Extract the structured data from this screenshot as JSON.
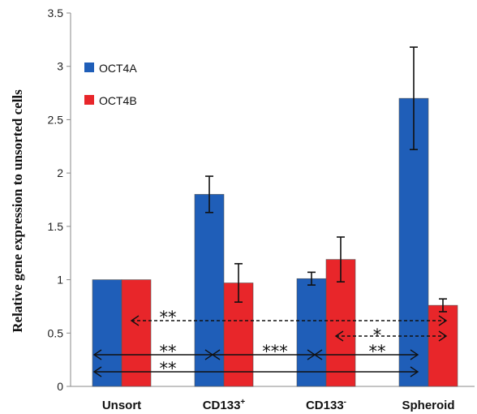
{
  "chart_data": {
    "type": "bar",
    "ylabel": "Relative gene expression to unsorted cells",
    "ylim": [
      0,
      3.5
    ],
    "yticks": [
      "0",
      "0.5",
      "1",
      "1.5",
      "2",
      "2.5",
      "3",
      "3.5"
    ],
    "categories": [
      {
        "label": "Unsort",
        "sup": ""
      },
      {
        "label": "CD133",
        "sup": "+"
      },
      {
        "label": "CD133",
        "sup": "-"
      },
      {
        "label": "Spheroid",
        "sup": ""
      }
    ],
    "series": [
      {
        "name": "OCT4A",
        "color": "#1f5eb8",
        "values": [
          1.0,
          1.8,
          1.01,
          2.7
        ],
        "errors": [
          0,
          0.17,
          0.06,
          0.48
        ]
      },
      {
        "name": "OCT4B",
        "color": "#e8262a",
        "values": [
          1.0,
          0.97,
          1.19,
          0.76
        ],
        "errors": [
          0,
          0.18,
          0.21,
          0.06
        ]
      }
    ],
    "legend": "top-left",
    "grid": false,
    "annotations": [
      {
        "label": "**",
        "style": "dashed"
      },
      {
        "label": "*",
        "style": "dashed"
      },
      {
        "label": "**",
        "style": "solid"
      },
      {
        "label": "***",
        "style": "solid"
      },
      {
        "label": "**",
        "style": "solid"
      },
      {
        "label": "**",
        "style": "solid"
      }
    ]
  }
}
